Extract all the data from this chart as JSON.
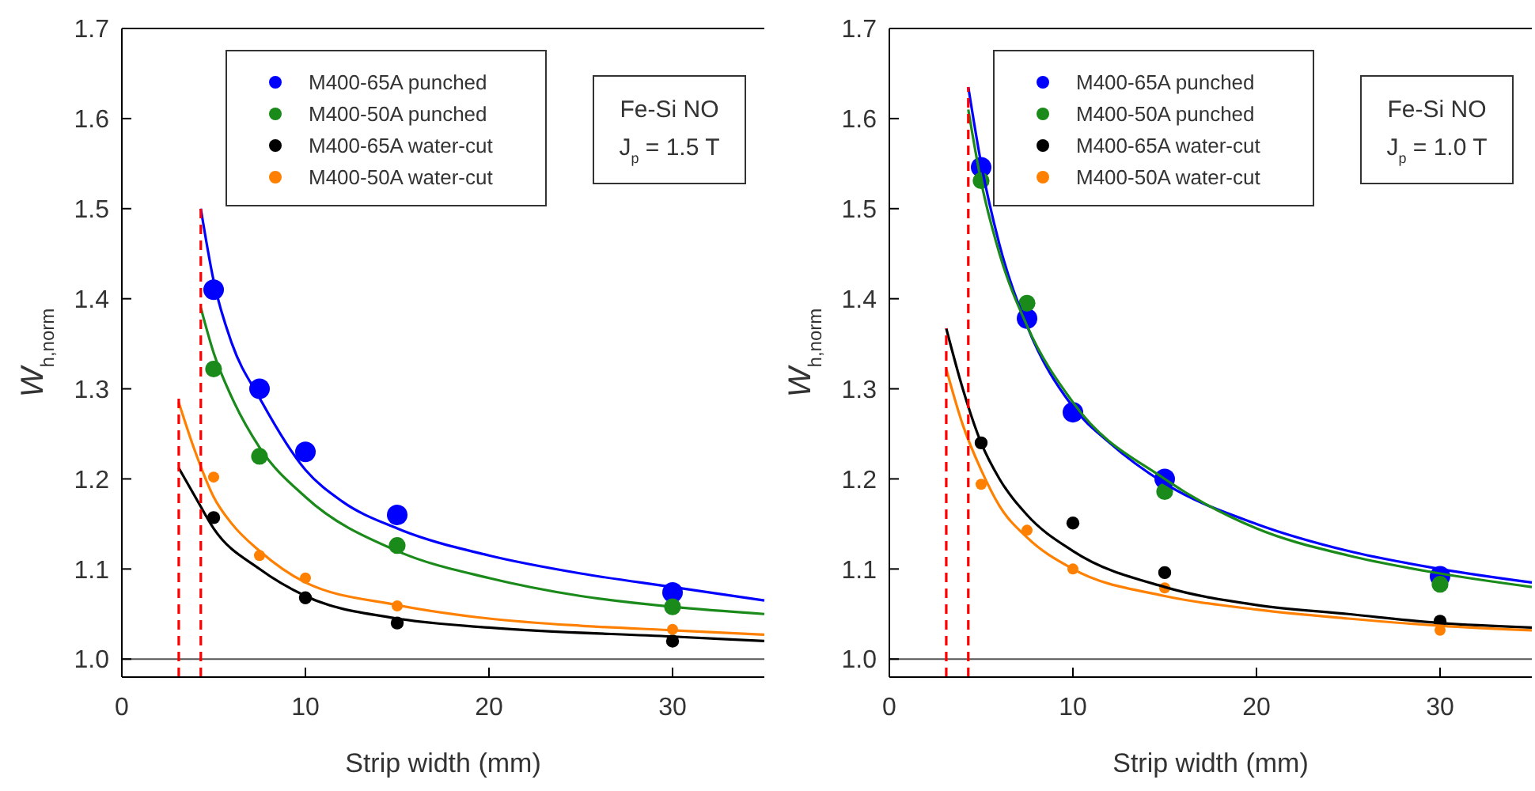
{
  "chart_data": [
    {
      "type": "scatter",
      "xlabel": "Strip width (mm)",
      "ylabel": "W$_{h,norm}$",
      "xlim": [
        0,
        35
      ],
      "ylim": [
        0.98,
        1.7
      ],
      "xticks": [
        0,
        10,
        20,
        30
      ],
      "yticks": [
        {
          "value": 1.0,
          "label": "1.0"
        },
        1.1,
        1.2,
        1.3,
        1.4,
        1.5,
        1.6,
        1.7
      ],
      "legend": "top",
      "grid": false,
      "annotations": [
        "Fe-Si NO",
        "J$_{p}$ = 1.5 T"
      ],
      "ref_lines": [
        {
          "axis": "y",
          "value": 1.0,
          "color": "#555555"
        }
      ],
      "series": [
        {
          "name": "M400-65A punched",
          "color": "#0000ff",
          "marker": "circle",
          "x": [
            5,
            7.5,
            10,
            15,
            30
          ],
          "values": [
            1.41,
            1.3,
            1.23,
            1.16,
            1.074
          ]
        },
        {
          "name": "M400-50A punched",
          "color": "#1a8a1a",
          "marker": "circle",
          "x": [
            5,
            7.5,
            15,
            30
          ],
          "values": [
            1.322,
            1.225,
            1.126,
            1.058
          ]
        },
        {
          "name": "M400-65A water-cut",
          "color": "#000000",
          "marker": "circle",
          "x": [
            5,
            10,
            15,
            30
          ],
          "values": [
            1.157,
            1.068,
            1.04,
            1.02
          ]
        },
        {
          "name": "M400-50A water-cut",
          "color": "#ff8000",
          "marker": "circle",
          "x": [
            5,
            7.5,
            10,
            15,
            30
          ],
          "values": [
            1.202,
            1.115,
            1.09,
            1.059,
            1.033
          ]
        },
        {
          "type": "line",
          "color": "#0000ff",
          "marker": "none",
          "x": [
            4.3,
            5,
            6,
            7.5,
            10,
            12,
            15,
            20,
            25,
            30,
            35
          ],
          "values": [
            1.5,
            1.42,
            1.35,
            1.29,
            1.21,
            1.175,
            1.145,
            1.115,
            1.095,
            1.08,
            1.065
          ]
        },
        {
          "type": "line",
          "color": "#1a8a1a",
          "marker": "none",
          "x": [
            4.3,
            5,
            6,
            7.5,
            10,
            15,
            20,
            25,
            30,
            35
          ],
          "values": [
            1.39,
            1.34,
            1.29,
            1.235,
            1.18,
            1.12,
            1.09,
            1.07,
            1.058,
            1.05
          ]
        },
        {
          "type": "line",
          "color": "#ff8000",
          "marker": "none",
          "x": [
            3.1,
            4,
            5,
            6,
            7.5,
            10,
            15,
            20,
            25,
            30,
            35
          ],
          "values": [
            1.285,
            1.23,
            1.18,
            1.15,
            1.12,
            1.085,
            1.06,
            1.045,
            1.037,
            1.032,
            1.027
          ]
        },
        {
          "type": "line",
          "color": "#000000",
          "marker": "none",
          "x": [
            3.1,
            4,
            5,
            7.5,
            10,
            15,
            20,
            30,
            35
          ],
          "values": [
            1.212,
            1.18,
            1.145,
            1.1,
            1.07,
            1.045,
            1.035,
            1.025,
            1.02
          ]
        },
        {
          "type": "line",
          "color": "#ff0000",
          "marker": "none",
          "line_style": "dashed",
          "x": [
            3.1,
            3.1
          ],
          "values": [
            0.98,
            1.29
          ]
        },
        {
          "type": "line",
          "color": "#ff0000",
          "marker": "none",
          "line_style": "dashed",
          "x": [
            4.3,
            4.3
          ],
          "values": [
            0.98,
            1.5
          ]
        }
      ]
    },
    {
      "type": "scatter",
      "xlabel": "Strip width (mm)",
      "ylabel": "W$_{h,norm}$",
      "xlim": [
        0,
        35
      ],
      "ylim": [
        0.98,
        1.7
      ],
      "xticks": [
        0,
        10,
        20,
        30
      ],
      "yticks": [
        {
          "value": 1.0,
          "label": "1.0"
        },
        1.1,
        1.2,
        1.3,
        1.4,
        1.5,
        1.6,
        1.7
      ],
      "legend": "top",
      "grid": false,
      "annotations": [
        "Fe-Si NO",
        "J$_{p}$ = 1.0 T"
      ],
      "ref_lines": [
        {
          "axis": "y",
          "value": 1.0,
          "color": "#555555"
        }
      ],
      "series": [
        {
          "name": "M400-65A punched",
          "color": "#0000ff",
          "marker": "circle",
          "x": [
            5,
            7.5,
            10,
            15,
            30
          ],
          "values": [
            1.546,
            1.378,
            1.274,
            1.2,
            1.092
          ]
        },
        {
          "name": "M400-50A punched",
          "color": "#1a8a1a",
          "marker": "circle",
          "x": [
            5,
            7.5,
            15,
            30
          ],
          "values": [
            1.531,
            1.395,
            1.186,
            1.083
          ]
        },
        {
          "name": "M400-65A water-cut",
          "color": "#000000",
          "marker": "circle",
          "x": [
            5,
            10,
            15,
            30
          ],
          "values": [
            1.24,
            1.151,
            1.096,
            1.042
          ]
        },
        {
          "name": "M400-50A water-cut",
          "color": "#ff8000",
          "marker": "circle",
          "x": [
            5,
            7.5,
            10,
            15,
            30
          ],
          "values": [
            1.194,
            1.143,
            1.1,
            1.079,
            1.032
          ]
        },
        {
          "type": "line",
          "color": "#0000ff",
          "marker": "none",
          "x": [
            4.3,
            5,
            6,
            7.5,
            10,
            12,
            15,
            20,
            25,
            30,
            35
          ],
          "values": [
            1.635,
            1.55,
            1.46,
            1.37,
            1.28,
            1.24,
            1.195,
            1.15,
            1.12,
            1.1,
            1.085
          ]
        },
        {
          "type": "line",
          "color": "#1a8a1a",
          "marker": "none",
          "x": [
            4.3,
            5,
            6,
            7.5,
            10,
            15,
            20,
            25,
            30,
            35
          ],
          "values": [
            1.61,
            1.53,
            1.45,
            1.37,
            1.285,
            1.2,
            1.145,
            1.115,
            1.095,
            1.08
          ]
        },
        {
          "type": "line",
          "color": "#000000",
          "marker": "none",
          "x": [
            3.1,
            4,
            5,
            6,
            7.5,
            10,
            15,
            20,
            25,
            30,
            35
          ],
          "values": [
            1.367,
            1.3,
            1.24,
            1.2,
            1.16,
            1.12,
            1.08,
            1.06,
            1.05,
            1.04,
            1.035
          ]
        },
        {
          "type": "line",
          "color": "#ff8000",
          "marker": "none",
          "x": [
            3.1,
            4,
            5,
            6,
            7.5,
            10,
            15,
            20,
            25,
            30,
            35
          ],
          "values": [
            1.322,
            1.26,
            1.21,
            1.17,
            1.135,
            1.1,
            1.07,
            1.055,
            1.045,
            1.037,
            1.032
          ]
        },
        {
          "type": "line",
          "color": "#ff0000",
          "marker": "none",
          "line_style": "dashed",
          "x": [
            3.1,
            3.1
          ],
          "values": [
            0.98,
            1.367
          ]
        },
        {
          "type": "line",
          "color": "#ff0000",
          "marker": "none",
          "line_style": "dashed",
          "x": [
            4.3,
            4.3
          ],
          "values": [
            0.98,
            1.635
          ]
        }
      ]
    }
  ]
}
